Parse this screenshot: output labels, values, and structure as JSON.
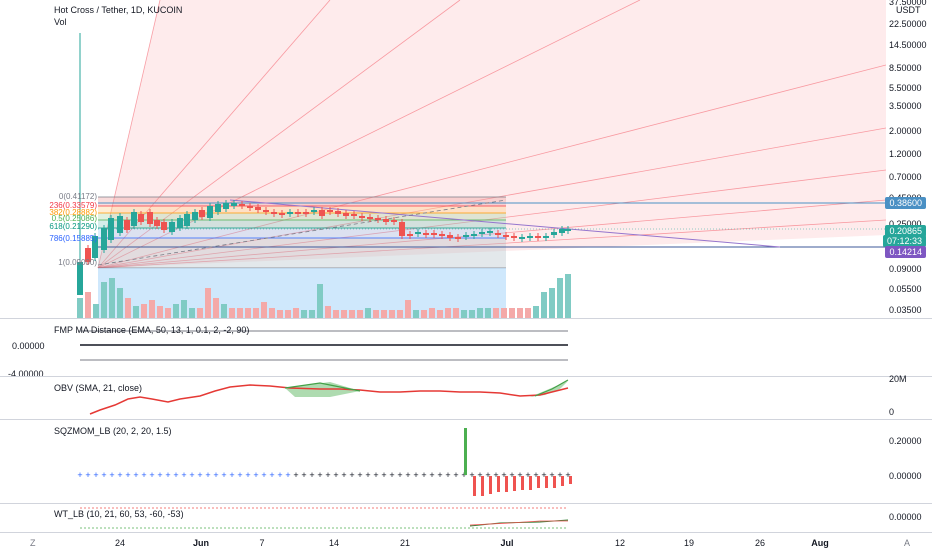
{
  "header": {
    "title": "Hot Cross / Tether, 1D, KUCOIN",
    "vol_label": "Vol"
  },
  "price_axis": {
    "currency": "USDT",
    "ticks": [
      "37.50000",
      "22.50000",
      "14.50000",
      "8.50000",
      "5.50000",
      "3.50000",
      "2.00000",
      "1.20000",
      "0.70000",
      "0.45000",
      "0.25000",
      "0.09000",
      "0.05500",
      "0.03500"
    ],
    "top_tag": "0.38600",
    "last_price": "0.20865",
    "countdown": "07:12:33",
    "low_tag": "0.14214"
  },
  "fib_levels": [
    {
      "label": "0(0.41172)",
      "color": "#787b86"
    },
    {
      "label": "236(0.33579)",
      "color": "#f23645"
    },
    {
      "label": "382(0.28882)",
      "color": "#ff9800"
    },
    {
      "label": "0.5(0.25086)",
      "color": "#4caf50"
    },
    {
      "label": "618(0.21290)",
      "color": "#089981"
    },
    {
      "label": "786(0.15885)",
      "color": "#2962ff"
    },
    {
      "label": "1(0.09000)",
      "color": "#787b86"
    }
  ],
  "indicators": [
    {
      "name": "FMP MA Distance (EMA, 50, 13, 1, 0.1, 2, -2, 90)",
      "ticks": [
        "0.00000",
        "-4.00000"
      ]
    },
    {
      "name": "OBV (SMA, 21, close)",
      "ticks": [
        "20M",
        "0"
      ]
    },
    {
      "name": "SQZMOM_LB (20, 2, 20, 1.5)",
      "ticks": [
        "0.20000",
        "0.00000"
      ]
    },
    {
      "name": "WT_LB (10, 21, 60, 53, -60, -53)",
      "ticks": [
        "0.00000"
      ]
    }
  ],
  "time_axis": [
    "24",
    "Jun",
    "7",
    "14",
    "21",
    "Jul",
    "12",
    "19",
    "26",
    "Aug"
  ],
  "corner_left": "Z",
  "corner_right": "A",
  "colors": {
    "up": "#26a69a",
    "down": "#ef5350",
    "blue_tag": "#4a90c4",
    "purple": "#9575cd"
  }
}
